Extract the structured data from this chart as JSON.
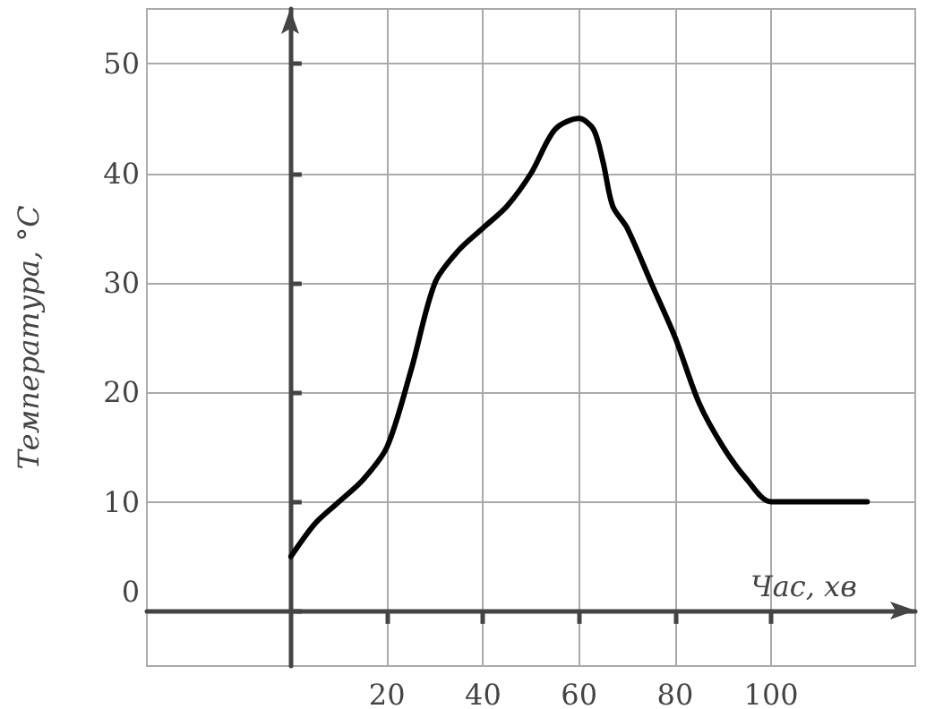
{
  "chart_data": {
    "type": "line",
    "xlabel": "Час, хв",
    "ylabel": "Температура, °C",
    "x": [
      0,
      5,
      10,
      15,
      20,
      25,
      30,
      35,
      40,
      45,
      50,
      55,
      60,
      63,
      65,
      67,
      70,
      75,
      80,
      85,
      90,
      95,
      100,
      120
    ],
    "series": [
      {
        "color": "#000000",
        "values": [
          5,
          8,
          10,
          12,
          15,
          22,
          30,
          33,
          35,
          37,
          40,
          44,
          45,
          44,
          41,
          37,
          35,
          30,
          25,
          19,
          15,
          12,
          10,
          10
        ]
      }
    ],
    "xlim": [
      -30,
      130
    ],
    "ylim": [
      -5,
      55
    ],
    "xticks": [
      20,
      40,
      60,
      80,
      100
    ],
    "yticks": [
      0,
      10,
      20,
      30,
      40,
      50
    ],
    "grid": true,
    "marker": "none",
    "line_style": "solid"
  }
}
